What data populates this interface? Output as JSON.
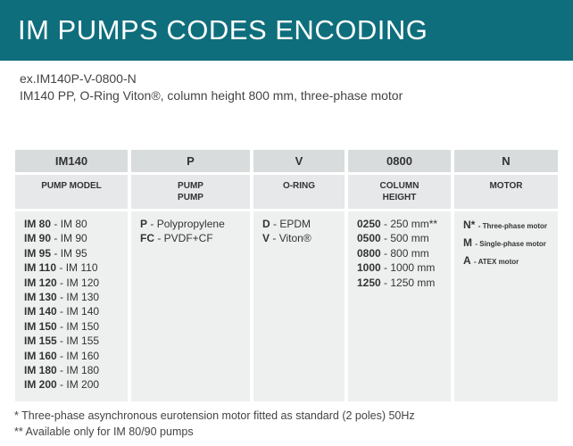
{
  "header": {
    "title": "IM PUMPS CODES ENCODING"
  },
  "example": {
    "code": "ex.IM140P-V-0800-N",
    "description": "IM140 PP, O-Ring Viton®, column height 800 mm, three-phase motor"
  },
  "table": {
    "columns": [
      {
        "code": "IM140",
        "label": [
          "PUMP MODEL"
        ],
        "items": [
          {
            "code": "IM 80",
            "desc": "- IM 80"
          },
          {
            "code": "IM 90",
            "desc": "- IM 90"
          },
          {
            "code": "IM 95",
            "desc": "- IM 95"
          },
          {
            "code": "IM 110",
            "desc": "- IM 110"
          },
          {
            "code": "IM 120",
            "desc": "- IM 120"
          },
          {
            "code": "IM 130",
            "desc": "- IM 130"
          },
          {
            "code": "IM 140",
            "desc": "- IM 140"
          },
          {
            "code": "IM 150",
            "desc": "- IM 150"
          },
          {
            "code": "IM 155",
            "desc": "- IM 155"
          },
          {
            "code": "IM 160",
            "desc": "- IM 160"
          },
          {
            "code": "IM 180",
            "desc": "- IM 180"
          },
          {
            "code": "IM 200",
            "desc": "- IM 200"
          }
        ]
      },
      {
        "code": "P",
        "label": [
          "PUMP",
          "PUMP"
        ],
        "items": [
          {
            "code": "P",
            "desc": "- Polypropylene"
          },
          {
            "code": "FC",
            "desc": "- PVDF+CF"
          }
        ]
      },
      {
        "code": "V",
        "label": [
          "O-RING"
        ],
        "items": [
          {
            "code": "D",
            "desc": "- EPDM"
          },
          {
            "code": "V",
            "desc": "- Viton®"
          }
        ]
      },
      {
        "code": "0800",
        "label": [
          "COLUMN",
          "HEIGHT"
        ],
        "items": [
          {
            "code": "0250",
            "desc": "- 250 mm**"
          },
          {
            "code": "0500",
            "desc": "- 500 mm"
          },
          {
            "code": "0800",
            "desc": "- 800 mm"
          },
          {
            "code": "1000",
            "desc": "- 1000 mm"
          },
          {
            "code": "1250",
            "desc": "- 1250 mm"
          }
        ]
      },
      {
        "code": "N",
        "label": [
          "MOTOR"
        ],
        "items": [
          {
            "code": "N*",
            "desc": "- Three-phase motor"
          },
          {
            "code": "M",
            "desc": "- Single-phase motor"
          },
          {
            "code": "A",
            "desc": "- ATEX motor"
          }
        ]
      }
    ]
  },
  "footnotes": [
    "* Three-phase asynchronous eurotension motor fitted as standard (2 poles) 50Hz",
    "** Available only for IM 80/90 pumps"
  ]
}
